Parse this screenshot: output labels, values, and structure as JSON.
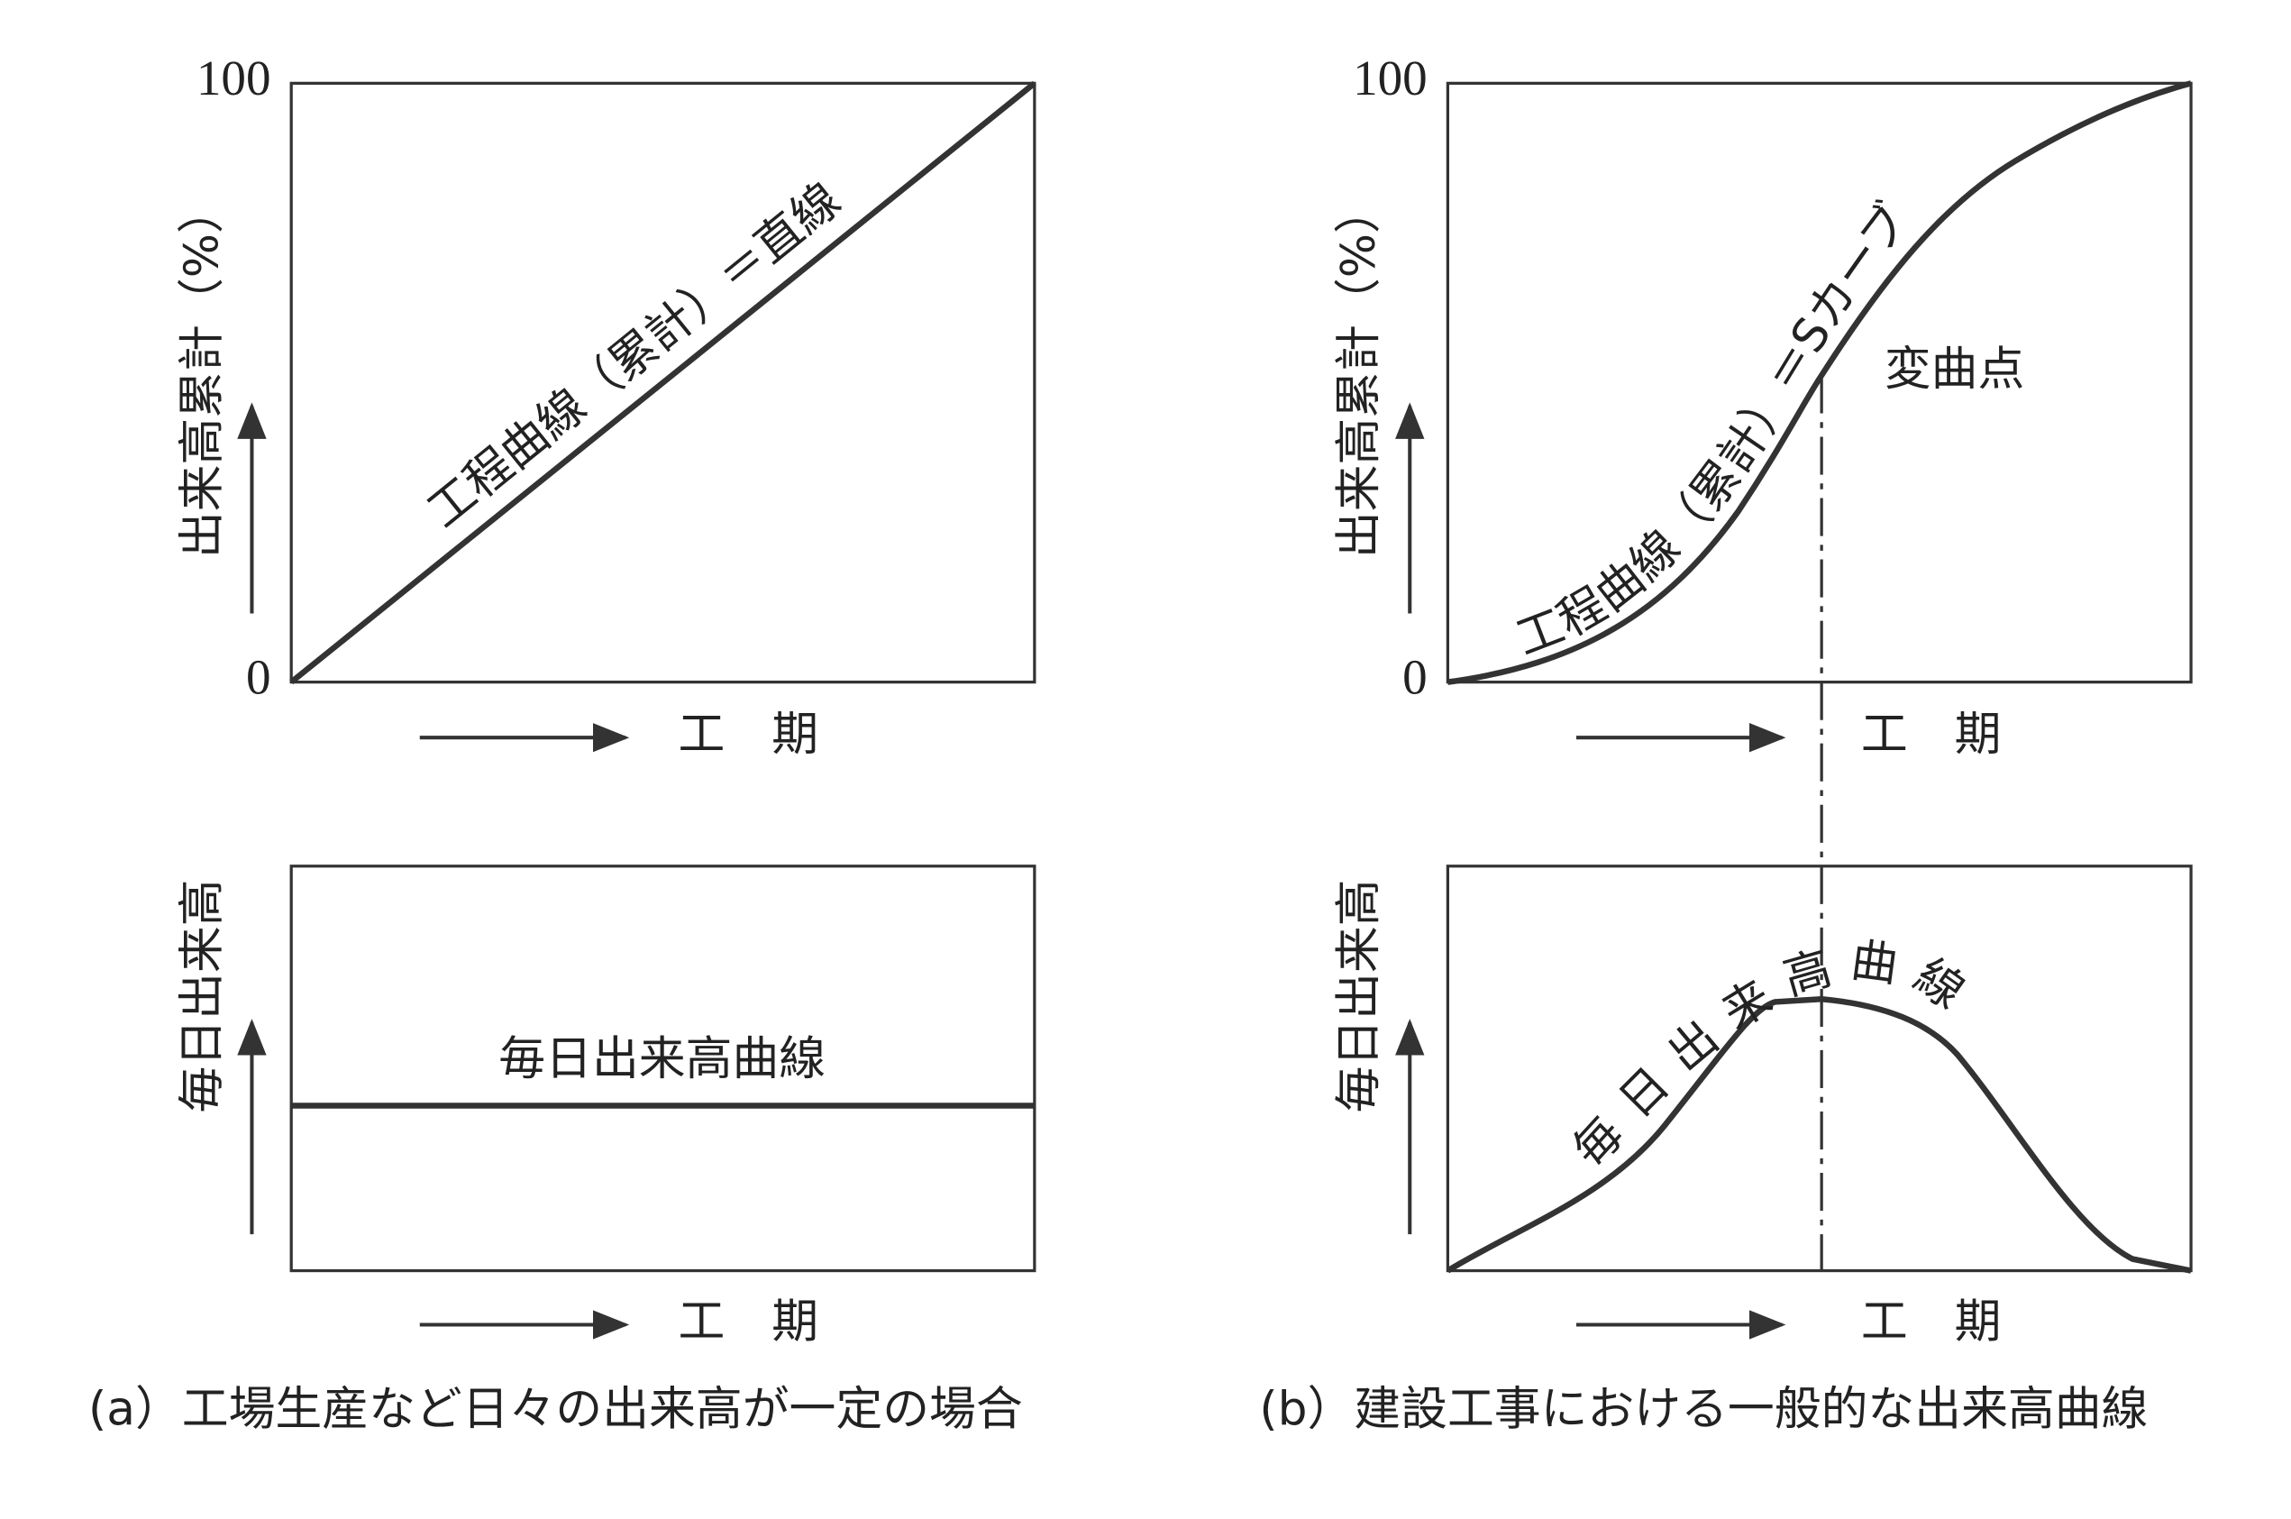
{
  "panel_a": {
    "top": {
      "y_label": "出来高累計（%）",
      "y_max": "100",
      "y_min": "0",
      "x_label": "工　期",
      "curve_label": "工程曲線（累計）＝直線"
    },
    "bottom": {
      "y_label": "毎日出来高",
      "x_label": "工　期",
      "curve_label": "毎日出来高曲線"
    },
    "caption": "(a）工場生産など日々の出来高が一定の場合"
  },
  "panel_b": {
    "top": {
      "y_label": "出来高累計（%）",
      "y_max": "100",
      "y_min": "0",
      "x_label": "工　期",
      "curve_label": "工程曲線（累計）＝Sカーブ",
      "inflection_label": "変曲点"
    },
    "bottom": {
      "y_label": "毎日出来高",
      "x_label": "工　期",
      "curve_label": "毎日出来高曲線"
    },
    "caption": "(b）建設工事における一般的な出来高曲線"
  }
}
